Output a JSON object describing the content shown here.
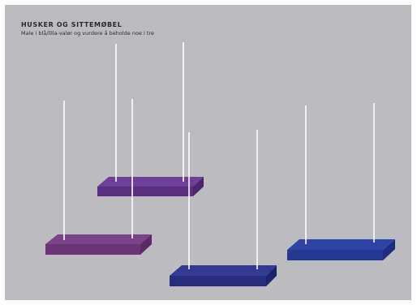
{
  "heading": {
    "title": "HUSKER OG SITTEMØBEL",
    "subtitle": "Male i blå/lilla-valør og vurdere å beholde noe i tre"
  },
  "colors": {
    "background": "#bcbbbf",
    "rope": "#ffffff",
    "shelves": [
      {
        "top": "#6e3f96",
        "side": "#5a2f80"
      },
      {
        "top": "#7a4289",
        "side": "#693473"
      },
      {
        "top": "#333a93",
        "side": "#272d7d"
      },
      {
        "top": "#2d44a6",
        "side": "#233893"
      }
    ]
  }
}
